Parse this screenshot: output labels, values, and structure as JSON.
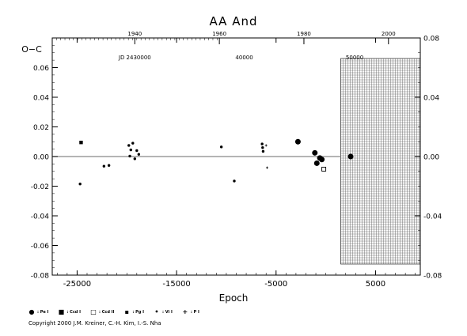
{
  "chart_data": {
    "type": "scatter",
    "title": "AA And",
    "xlabel": "Epoch",
    "ylabel": "O−C",
    "xlim": [
      -27500,
      9500
    ],
    "ylim": [
      -0.08,
      0.08
    ],
    "x_ticks": [
      -25000,
      -15000,
      -5000,
      5000
    ],
    "x_tick_labels": [
      "-25000",
      "-15000",
      "-5000",
      "5000"
    ],
    "y_ticks": [
      -0.08,
      -0.06,
      -0.04,
      -0.02,
      0.0,
      0.02,
      0.04,
      0.06,
      0.08
    ],
    "y_tick_labels_left": [
      "-0.08",
      "-0.06",
      "-0.04",
      "-0.02",
      "0.00",
      "0.02",
      "0.04",
      "0.06"
    ],
    "y_tick_labels_right": [
      "-0.08",
      "-0.04",
      "0.00",
      "0.04",
      "0.08"
    ],
    "y_right_ticks": [
      -0.08,
      -0.04,
      0.0,
      0.04,
      0.08
    ],
    "top_axis_years": [
      {
        "label": "1940",
        "epoch": -19200
      },
      {
        "label": "1960",
        "epoch": -10700
      },
      {
        "label": "1980",
        "epoch": -2200
      },
      {
        "label": "2000",
        "epoch": 6300
      }
    ],
    "top_axis_jd": [
      {
        "label": "JD 2430000",
        "epoch": -19200
      },
      {
        "label": "40000",
        "epoch": -8200
      },
      {
        "label": "50000",
        "epoch": 2900
      }
    ],
    "future_region_start": 1500,
    "grid": false,
    "legend_position": "bottom",
    "series": [
      {
        "name": "Pe I",
        "marker": "circle-large",
        "points": [
          [
            -2800,
            0.01
          ],
          [
            -1100,
            0.0025
          ],
          [
            -900,
            -0.0045
          ],
          [
            -600,
            -0.001
          ],
          [
            -400,
            -0.002
          ],
          [
            2500,
            0.0
          ]
        ]
      },
      {
        "name": "Ccd I",
        "marker": "square-filled",
        "points": [
          [
            -24600,
            0.0095
          ]
        ]
      },
      {
        "name": "Ccd II",
        "marker": "square-open",
        "points": [
          [
            -200,
            -0.0085
          ]
        ]
      },
      {
        "name": "Pg I",
        "marker": "square-small",
        "points": []
      },
      {
        "name": "Vi I",
        "marker": "circle-small",
        "points": [
          [
            -24700,
            -0.0185
          ],
          [
            -22300,
            -0.0065
          ],
          [
            -21800,
            -0.006
          ],
          [
            -19800,
            0.0075
          ],
          [
            -19400,
            0.009
          ],
          [
            -19600,
            0.0045
          ],
          [
            -19000,
            0.004
          ],
          [
            -19700,
            0.0003
          ],
          [
            -19200,
            -0.0015
          ],
          [
            -18800,
            0.0015
          ],
          [
            -10500,
            0.0065
          ],
          [
            -9200,
            -0.0165
          ],
          [
            -6400,
            0.0085
          ],
          [
            -6350,
            0.006
          ],
          [
            -6300,
            0.0035
          ]
        ]
      },
      {
        "name": "P I",
        "marker": "plus-small",
        "points": [
          [
            -6000,
            0.0075
          ],
          [
            -5900,
            -0.0075
          ]
        ]
      }
    ]
  },
  "legend_entries": [
    {
      "symbol": "●",
      "label": ": Pe I"
    },
    {
      "symbol": "■",
      "label": ": Ccd I"
    },
    {
      "symbol": "□",
      "label": ": Ccd II"
    },
    {
      "symbol": "▪",
      "label": ": Pg I"
    },
    {
      "symbol": "•",
      "label": ": Vi I"
    },
    {
      "symbol": "+",
      "label": ": P I"
    }
  ],
  "copyright": "Copyright 2000 J.M. Kreiner, C.-H. Kim, I.-S. Nha"
}
